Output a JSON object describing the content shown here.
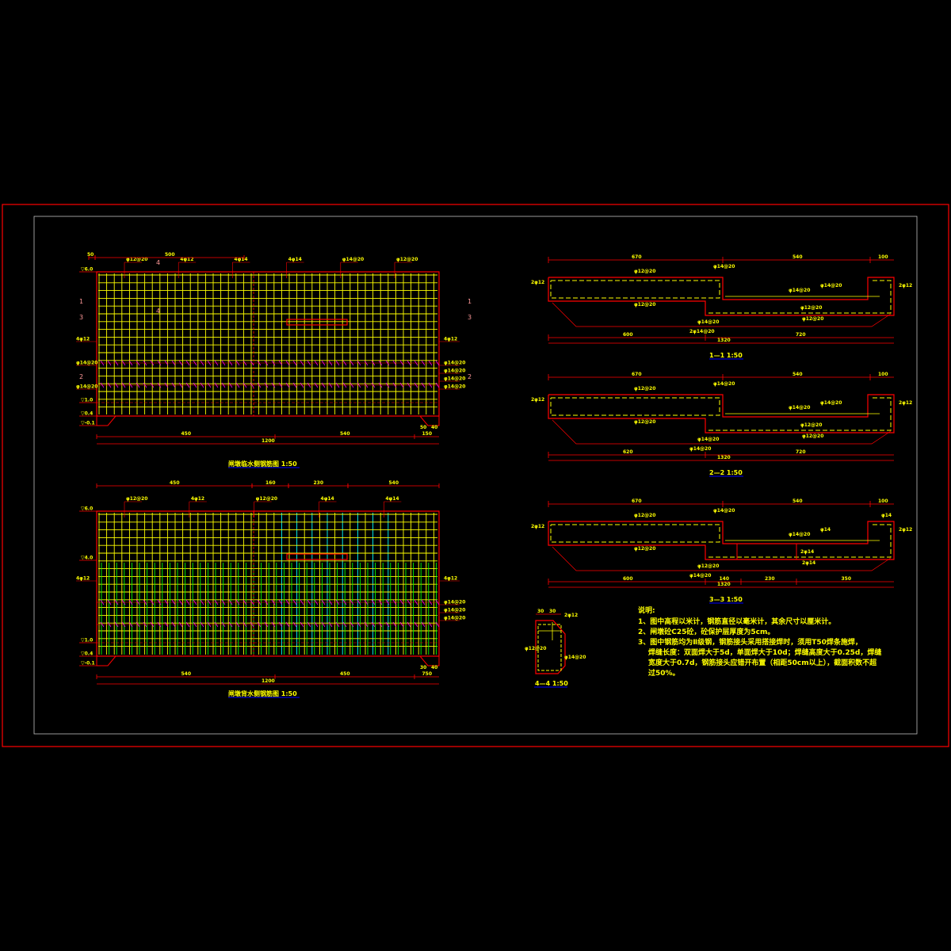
{
  "colors": {
    "background": "#000000",
    "frame": "#ff0000",
    "inner_frame": "#c0c0c0",
    "rebar": "#ffff00",
    "concrete": "#ff0000",
    "stirrup": "#ff00ff",
    "rebar_green": "#00ff00",
    "rebar_cyan": "#00ffff"
  },
  "elevation_upstream": {
    "title": "闸墩临水侧钢筋图 1:50",
    "levels": [
      "▽6.0",
      "▽1.0",
      "▽0.4",
      "▽-0.1"
    ],
    "top_dims": [
      "50",
      "500"
    ],
    "bottom_dims": [
      "450",
      "540",
      "150",
      "1200",
      "50",
      "40"
    ],
    "rebar_labels_top": [
      "φ12@20",
      "4φ12",
      "4φ14",
      "4φ14",
      "φ14@20",
      "φ12@20"
    ],
    "rebar_labels_left": [
      "4φ12",
      "φ14@20",
      "φ14@20"
    ],
    "rebar_labels_right": [
      "4φ12",
      "φ14@20",
      "φ14@20",
      "φ14@20",
      "φ14@20"
    ],
    "section_marks": [
      "1",
      "3",
      "2",
      "1",
      "3",
      "2",
      "4",
      "4"
    ]
  },
  "elevation_downstream": {
    "title": "闸墩背水侧钢筋图 1:50",
    "levels": [
      "▽6.0",
      "▽4.0",
      "▽1.0",
      "▽0.4",
      "▽-0.1"
    ],
    "top_dims": [
      "450",
      "160",
      "230",
      "540"
    ],
    "bottom_dims": [
      "540",
      "450",
      "750",
      "1200",
      "30",
      "40"
    ],
    "rebar_labels_top": [
      "φ12@20",
      "4φ12",
      "φ12@20",
      "4φ14",
      "4φ14"
    ],
    "rebar_labels_left": [
      "4φ12"
    ],
    "rebar_labels_right": [
      "4φ12",
      "φ14@20",
      "φ14@20",
      "φ14@20"
    ]
  },
  "sections": [
    {
      "title": "1—1 1:50",
      "top_dims": [
        "670",
        "540",
        "100"
      ],
      "bottom_dims": [
        "600",
        "720",
        "1320"
      ],
      "labels": [
        "φ12@20",
        "φ14@20",
        "φ12@20",
        "φ14@20",
        "φ14@20",
        "φ12@20",
        "φ12@20",
        "φ14@20",
        "2φ14@20",
        "2φ12",
        "2φ12"
      ]
    },
    {
      "title": "2—2 1:50",
      "top_dims": [
        "670",
        "540",
        "100"
      ],
      "bottom_dims": [
        "620",
        "720",
        "1320"
      ],
      "labels": [
        "φ12@20",
        "φ14@20",
        "φ12@20",
        "φ14@20",
        "φ14@20",
        "φ12@20",
        "φ12@20",
        "φ14@20",
        "φ14@20",
        "2φ12",
        "2φ12"
      ]
    },
    {
      "title": "3—3 1:50",
      "top_dims": [
        "670",
        "540",
        "100"
      ],
      "bottom_dims": [
        "600",
        "140",
        "230",
        "350",
        "1320"
      ],
      "labels": [
        "φ12@20",
        "φ14@20",
        "φ12@20",
        "φ14@20",
        "φ14",
        "2φ14",
        "2φ14",
        "φ12@20",
        "φ14@20",
        "2φ12",
        "2φ12",
        "φ14"
      ]
    },
    {
      "title": "4—4 1:50",
      "top_dims": [
        "30",
        "30"
      ],
      "labels": [
        "2φ12",
        "φ12@20",
        "φ14@20"
      ]
    }
  ],
  "notes": {
    "heading": "说明:",
    "lines": [
      "1、图中高程以米计，钢筋直径以毫米计，其余尺寸以厘米计。",
      "2、闸墩砼C25砼，砼保护层厚度为5cm。",
      "3、图中钢筋均为Ⅱ级钢，钢筋接头采用搭接焊时，须用T50焊条施焊，",
      "焊缝长度：双面焊大于5d，单面焊大于10d；焊缝高度大于0.25d，焊缝",
      "宽度大于0.7d，钢筋接头应错开布置（相距50cm以上），截面积数不超",
      "过50%。"
    ]
  }
}
